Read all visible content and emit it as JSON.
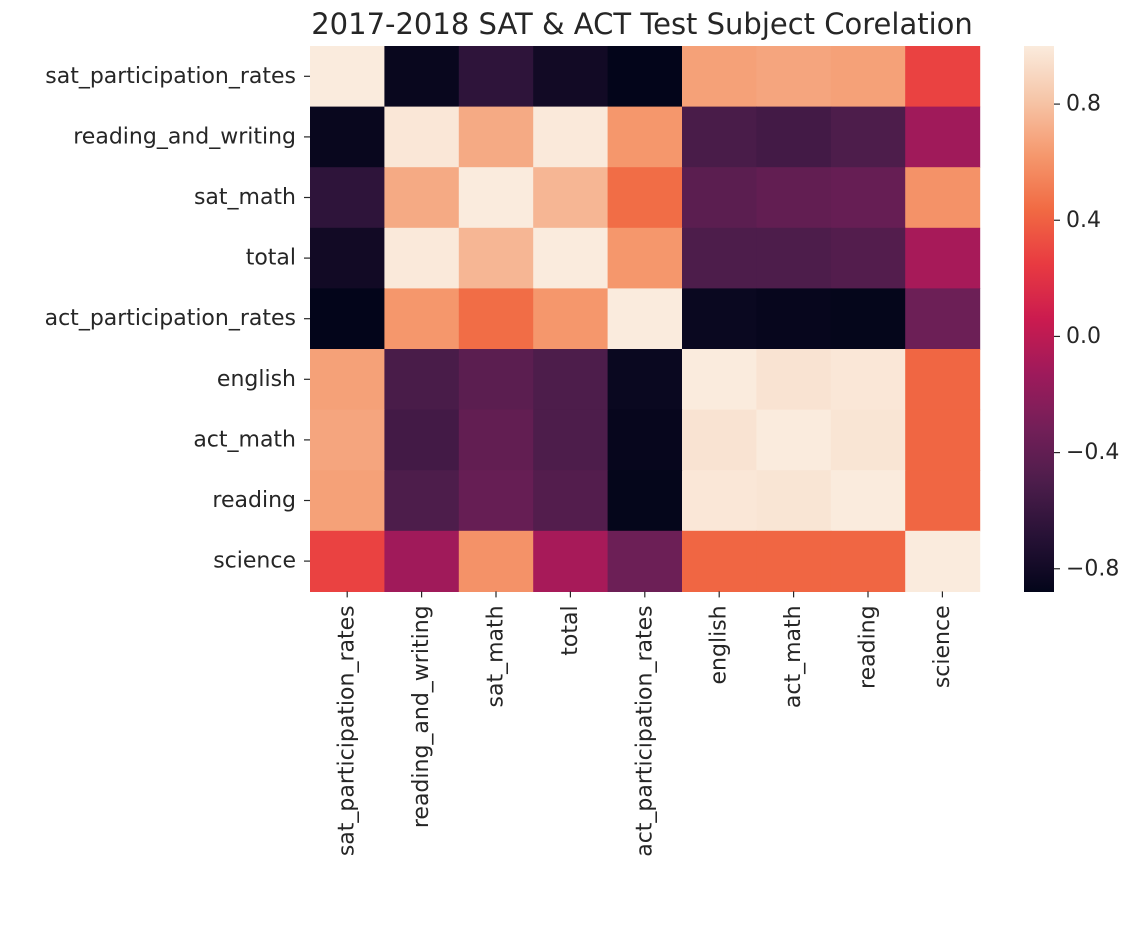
{
  "chart_data": {
    "type": "heatmap",
    "title": "2017-2018 SAT & ACT Test Subject Corelation",
    "x_categories": [
      "sat_participation_rates",
      "reading_and_writing",
      "sat_math",
      "total",
      "act_participation_rates",
      "english",
      "act_math",
      "reading",
      "science"
    ],
    "y_categories": [
      "sat_participation_rates",
      "reading_and_writing",
      "sat_math",
      "total",
      "act_participation_rates",
      "english",
      "act_math",
      "reading",
      "science"
    ],
    "values": [
      [
        1.0,
        -0.85,
        -0.65,
        -0.8,
        -0.88,
        0.66,
        0.68,
        0.66,
        0.28
      ],
      [
        -0.85,
        0.98,
        0.7,
        0.99,
        0.62,
        -0.52,
        -0.55,
        -0.5,
        -0.12
      ],
      [
        -0.65,
        0.7,
        1.0,
        0.75,
        0.45,
        -0.43,
        -0.4,
        -0.38,
        0.6
      ],
      [
        -0.8,
        0.99,
        0.75,
        1.0,
        0.62,
        -0.5,
        -0.5,
        -0.47,
        -0.09
      ],
      [
        -0.88,
        0.62,
        0.45,
        0.62,
        1.0,
        -0.84,
        -0.86,
        -0.87,
        -0.35
      ],
      [
        0.66,
        -0.52,
        -0.43,
        -0.5,
        -0.84,
        1.0,
        0.96,
        0.98,
        0.42
      ],
      [
        0.68,
        -0.55,
        -0.4,
        -0.5,
        -0.86,
        0.96,
        1.0,
        0.97,
        0.42
      ],
      [
        0.66,
        -0.5,
        -0.38,
        -0.47,
        -0.87,
        0.98,
        0.97,
        1.0,
        0.42
      ],
      [
        0.28,
        -0.12,
        0.6,
        -0.09,
        -0.35,
        0.42,
        0.42,
        0.42,
        1.0
      ]
    ],
    "colormap": "rocket",
    "vmin": -0.88,
    "vmax": 1.0,
    "colorbar_ticks": [
      0.8,
      0.4,
      0.0,
      -0.4,
      -0.8
    ],
    "colorbar_tick_labels": [
      "0.8",
      "0.4",
      "0.0",
      "−0.4",
      "−0.8"
    ],
    "grid": false,
    "legend": "colorbar-right"
  }
}
